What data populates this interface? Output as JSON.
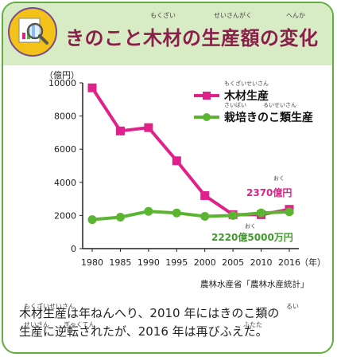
{
  "header": {
    "title": "きのこと木材の生産額の変化",
    "ruby": [
      "もくざい",
      "せいさんがく",
      "へんか"
    ]
  },
  "chart_data": {
    "type": "line",
    "title": "きのこと木材の生産額の変化",
    "ylabel": "（億円）",
    "xlabel": "（年）",
    "x": [
      1980,
      1985,
      1990,
      1995,
      2000,
      2005,
      2010,
      2016
    ],
    "x_tick_labels": [
      "1980",
      "1985",
      "1990",
      "1995",
      "2000",
      "2005",
      "2010",
      "2016"
    ],
    "ylim": [
      0,
      10000
    ],
    "y_ticks": [
      0,
      2000,
      4000,
      6000,
      8000,
      10000
    ],
    "y_tick_labels": [
      "0",
      "2000",
      "4000",
      "6000",
      "8000",
      "10000"
    ],
    "grid": false,
    "legend_position": "top-right",
    "series": [
      {
        "name": "木材生産",
        "ruby": "もくざいせいさん",
        "color": "#e0218a",
        "marker": "square",
        "values": [
          9700,
          7100,
          7300,
          5300,
          3200,
          2050,
          2050,
          2370
        ]
      },
      {
        "name": "栽培きのこ類生産",
        "ruby": "さいばい　　　るいせいさん",
        "color": "#5cb531",
        "marker": "circle",
        "values": [
          1750,
          1900,
          2250,
          2150,
          1950,
          2000,
          2150,
          2220
        ]
      }
    ],
    "annotations": [
      {
        "text": "2370億円",
        "ruby": "おく",
        "color": "#e0218a"
      },
      {
        "text": "2220億5000万円",
        "ruby": "おく",
        "color": "#3f9b2a"
      }
    ],
    "source": "農林水産省「農林水産統計」"
  },
  "caption": {
    "line1": "木材生産は年ねんへり、2010 年にはきのこ類の",
    "line2": "生産に逆転されたが、2016 年は再びふえた。",
    "ruby": [
      "もくざいせいさん",
      "るい",
      "せいさん",
      "ぎゃくてん",
      "ふたた"
    ]
  },
  "colors": {
    "header_bg": "#d7ebc5",
    "border": "#5fae3e",
    "title": "#8a1f4a"
  }
}
